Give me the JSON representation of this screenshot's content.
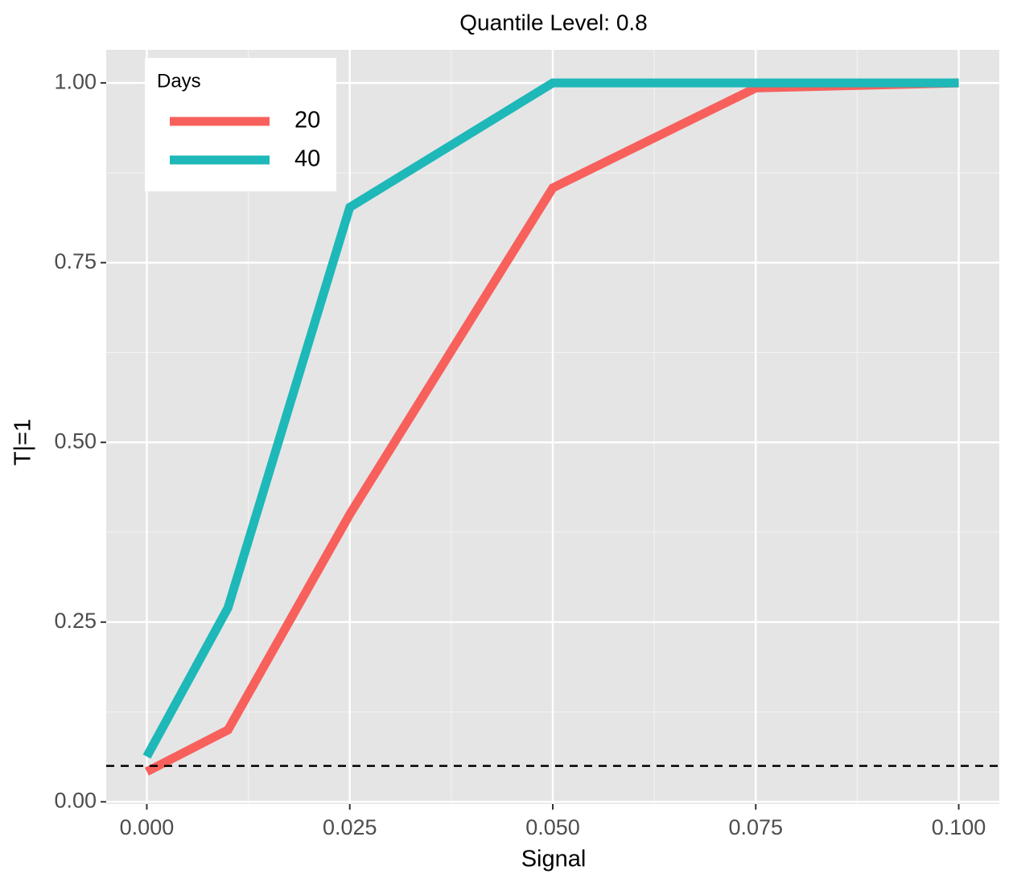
{
  "chart_data": {
    "type": "line",
    "title": "Quantile Level: 0.8",
    "x_label": "Signal",
    "y_label": "T|=1",
    "x": [
      0,
      0.01,
      0.025,
      0.05,
      0.075,
      0.1
    ],
    "series": [
      {
        "name": "20",
        "color": "#f8605c",
        "values": [
          0.042,
          0.1,
          0.4,
          0.854,
          0.993,
          1.0
        ]
      },
      {
        "name": "40",
        "color": "#1eb8b9",
        "values": [
          0.063,
          0.27,
          0.827,
          1.0,
          1.0,
          1.0
        ]
      }
    ],
    "legend_title": "Days",
    "legend_position": "top-left",
    "xlim": [
      -0.005,
      0.105
    ],
    "ylim": [
      -0.003,
      1.046
    ],
    "xticks": [
      {
        "value": 0,
        "label": "0.000"
      },
      {
        "value": 0.025,
        "label": "0.025"
      },
      {
        "value": 0.05,
        "label": "0.050"
      },
      {
        "value": 0.075,
        "label": "0.075"
      },
      {
        "value": 0.1,
        "label": "0.100"
      }
    ],
    "yticks": [
      {
        "value": 0,
        "label": "0.00"
      },
      {
        "value": 0.25,
        "label": "0.25"
      },
      {
        "value": 0.5,
        "label": "0.50"
      },
      {
        "value": 0.75,
        "label": "0.75"
      },
      {
        "value": 1,
        "label": "1.00"
      }
    ],
    "x_minor_ticks": [
      0.0125,
      0.0375,
      0.0625,
      0.0875
    ],
    "y_minor_ticks": [
      0.125,
      0.375,
      0.625,
      0.875
    ],
    "reference_line": {
      "value": 0.05,
      "color": "#000000"
    },
    "grid": true
  }
}
